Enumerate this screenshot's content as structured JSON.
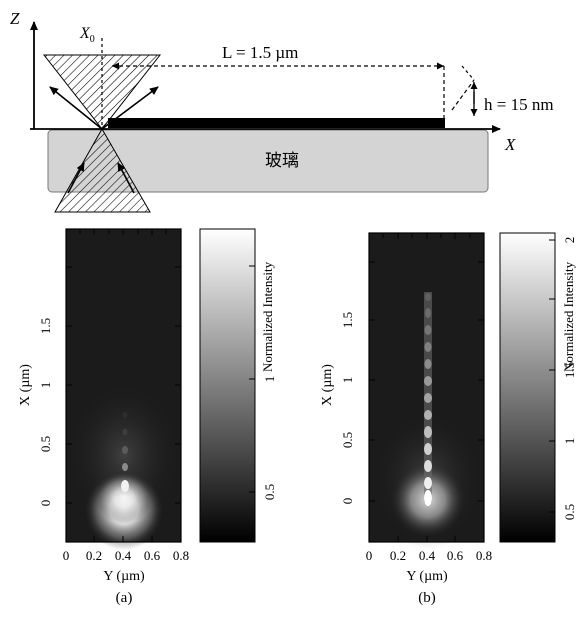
{
  "schematic": {
    "z_axis_label": "Z",
    "x0_label": "X",
    "x0_subscript": "0",
    "x_axis_label": "X",
    "length_label": "L = 1.5 µm",
    "height_label": "h = 15 nm",
    "substrate_label": "玻璃"
  },
  "panels": [
    {
      "caption": "(a)",
      "xlabel": "Y (µm)",
      "ylabel": "X (µm)",
      "x_ticks": [
        "0",
        "0.2",
        "0.4",
        "0.6",
        "0.8"
      ],
      "y_ticks": [
        "0",
        "0.5",
        "1",
        "1.5"
      ],
      "colorbar_label": "Normalized Intensity",
      "colorbar_ticks": [
        "0.5",
        "1"
      ]
    },
    {
      "caption": "(b)",
      "xlabel": "Y (µm)",
      "ylabel": "X (µm)",
      "x_ticks": [
        "0",
        "0.2",
        "0.4",
        "0.6",
        "0.8"
      ],
      "y_ticks": [
        "0",
        "0.5",
        "1",
        "1.5"
      ],
      "colorbar_label": "Normalized Intensity",
      "colorbar_ticks": [
        "0.5",
        "1",
        "1.5",
        "2"
      ]
    }
  ]
}
